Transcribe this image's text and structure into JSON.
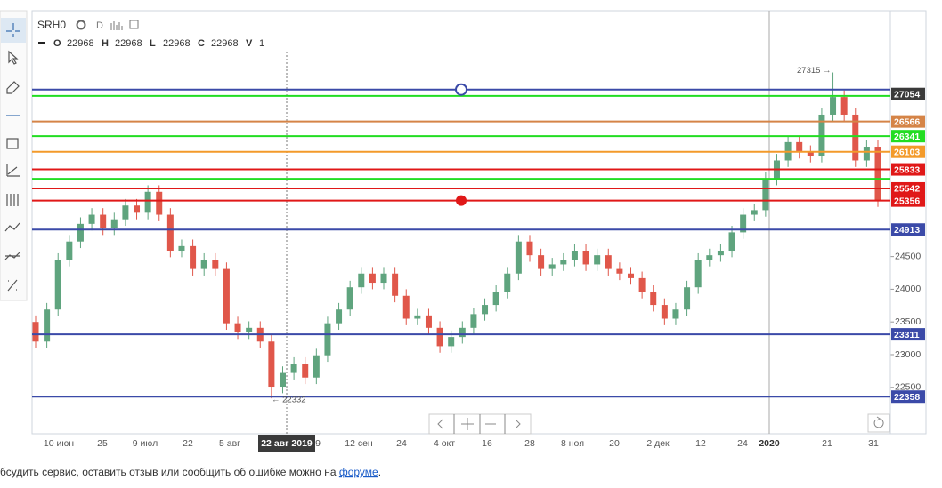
{
  "chart_data": {
    "type": "candlestick",
    "header": {
      "symbol": "SRH0",
      "period": "D",
      "fields": [
        {
          "key": "O",
          "value": 22968
        },
        {
          "key": "H",
          "value": 22968
        },
        {
          "key": "L",
          "value": 22968
        },
        {
          "key": "C",
          "value": 22968
        },
        {
          "key": "V",
          "value": 1
        }
      ]
    },
    "ylim": [
      21790,
      28260
    ],
    "yticks": [
      24500,
      24000,
      23500,
      23000,
      22500
    ],
    "x_labels": [
      "10 июн",
      "25",
      "9 июл",
      "22",
      "5 авг",
      "22 авг 2019",
      "9",
      "12 сен",
      "24",
      "4 окт",
      "16",
      "28",
      "8 ноя",
      "20",
      "2 дек",
      "12",
      "24",
      "2020",
      "21",
      "31"
    ],
    "up_color": "#5fa47e",
    "down_color": "#e0574a",
    "levels": [
      {
        "value": 27054,
        "color": "#3b4aa8",
        "label_background": "#3a3a3a",
        "label": "27054"
      },
      {
        "value": 26957,
        "color": "#22dd22"
      },
      {
        "value": 26566,
        "color": "#d58447",
        "label": "26566"
      },
      {
        "value": 26341,
        "color": "#22dd22",
        "label": "26341"
      },
      {
        "value": 26103,
        "color": "#f39a2a",
        "label": "26103"
      },
      {
        "value": 25833,
        "color": "#e01818",
        "label": "25833"
      },
      {
        "value": 25690,
        "color": "#22dd22"
      },
      {
        "value": 25542,
        "color": "#e01818",
        "label": "25542"
      },
      {
        "value": 25356,
        "color": "#e01818",
        "label": "25356"
      },
      {
        "value": 24913,
        "color": "#3b4aa8",
        "label": "24913"
      },
      {
        "value": 23311,
        "color": "#3b4aa8",
        "label": "23311"
      },
      {
        "value": 22358,
        "color": "#3b4aa8",
        "label": "22358"
      }
    ],
    "annotations": [
      {
        "text": "27315 →",
        "value": 27315
      },
      {
        "text": "← 22332",
        "value": 22332
      }
    ],
    "ohlc": [
      [
        23500,
        23600,
        23100,
        23200
      ],
      [
        23200,
        23790,
        23100,
        23690
      ],
      [
        23690,
        24550,
        23590,
        24450
      ],
      [
        24450,
        24830,
        24350,
        24730
      ],
      [
        24730,
        25100,
        24630,
        25000
      ],
      [
        25000,
        25240,
        24900,
        25140
      ],
      [
        25140,
        25240,
        24830,
        24930
      ],
      [
        24930,
        25170,
        24830,
        25070
      ],
      [
        25070,
        25380,
        24970,
        25280
      ],
      [
        25280,
        25380,
        25070,
        25170
      ],
      [
        25170,
        25590,
        25070,
        25490
      ],
      [
        25490,
        25590,
        25040,
        25140
      ],
      [
        25140,
        25240,
        24490,
        24590
      ],
      [
        24590,
        24760,
        24490,
        24660
      ],
      [
        24660,
        24760,
        24210,
        24310
      ],
      [
        24310,
        24550,
        24210,
        24450
      ],
      [
        24450,
        24550,
        24210,
        24310
      ],
      [
        24310,
        24410,
        23380,
        23480
      ],
      [
        23480,
        23580,
        23240,
        23340
      ],
      [
        23340,
        23510,
        23240,
        23410
      ],
      [
        23410,
        23510,
        23100,
        23200
      ],
      [
        23200,
        23300,
        22332,
        22510
      ],
      [
        22510,
        22820,
        22410,
        22720
      ],
      [
        22720,
        22960,
        22620,
        22860
      ],
      [
        22860,
        22960,
        22550,
        22650
      ],
      [
        22650,
        23090,
        22550,
        22990
      ],
      [
        22990,
        23580,
        22890,
        23480
      ],
      [
        23480,
        23790,
        23380,
        23690
      ],
      [
        23690,
        24130,
        23590,
        24030
      ],
      [
        24030,
        24340,
        23930,
        24240
      ],
      [
        24240,
        24340,
        24000,
        24100
      ],
      [
        24100,
        24340,
        24000,
        24240
      ],
      [
        24240,
        24340,
        23800,
        23900
      ],
      [
        23900,
        24000,
        23450,
        23550
      ],
      [
        23550,
        23700,
        23450,
        23600
      ],
      [
        23600,
        23700,
        23310,
        23410
      ],
      [
        23410,
        23510,
        23030,
        23130
      ],
      [
        23130,
        23370,
        23030,
        23270
      ],
      [
        23270,
        23510,
        23170,
        23410
      ],
      [
        23410,
        23720,
        23310,
        23620
      ],
      [
        23620,
        23860,
        23520,
        23760
      ],
      [
        23760,
        24060,
        23660,
        23960
      ],
      [
        23960,
        24340,
        23860,
        24240
      ],
      [
        24240,
        24830,
        24140,
        24730
      ],
      [
        24730,
        24830,
        24420,
        24520
      ],
      [
        24520,
        24620,
        24210,
        24310
      ],
      [
        24310,
        24480,
        24210,
        24380
      ],
      [
        24380,
        24550,
        24280,
        24450
      ],
      [
        24450,
        24690,
        24350,
        24590
      ],
      [
        24590,
        24690,
        24280,
        24380
      ],
      [
        24380,
        24620,
        24280,
        24520
      ],
      [
        24520,
        24620,
        24210,
        24310
      ],
      [
        24310,
        24410,
        24140,
        24240
      ],
      [
        24240,
        24340,
        24070,
        24170
      ],
      [
        24170,
        24270,
        23860,
        23960
      ],
      [
        23960,
        24060,
        23660,
        23760
      ],
      [
        23760,
        23860,
        23450,
        23550
      ],
      [
        23550,
        23790,
        23450,
        23690
      ],
      [
        23690,
        24130,
        23590,
        24030
      ],
      [
        24030,
        24550,
        23930,
        24450
      ],
      [
        24450,
        24620,
        24350,
        24520
      ],
      [
        24520,
        24690,
        24420,
        24590
      ],
      [
        24590,
        24970,
        24490,
        24870
      ],
      [
        24870,
        25240,
        24770,
        25140
      ],
      [
        25140,
        25310,
        25040,
        25210
      ],
      [
        25210,
        25790,
        25110,
        25690
      ],
      [
        25690,
        26070,
        25590,
        25970
      ],
      [
        25970,
        26350,
        25870,
        26250
      ],
      [
        26250,
        26350,
        26000,
        26100
      ],
      [
        26100,
        26200,
        25940,
        26040
      ],
      [
        26040,
        26770,
        25940,
        26670
      ],
      [
        26670,
        27315,
        26570,
        26940
      ],
      [
        26940,
        27040,
        26570,
        26670
      ],
      [
        26670,
        26770,
        25870,
        25970
      ],
      [
        25970,
        26280,
        25870,
        26180
      ],
      [
        26180,
        26280,
        25260,
        25360
      ]
    ]
  },
  "footer": {
    "text": "бсудить сервис, оставить отзыв или сообщить об ошибке можно на ",
    "link": "форуме",
    "end": "."
  }
}
